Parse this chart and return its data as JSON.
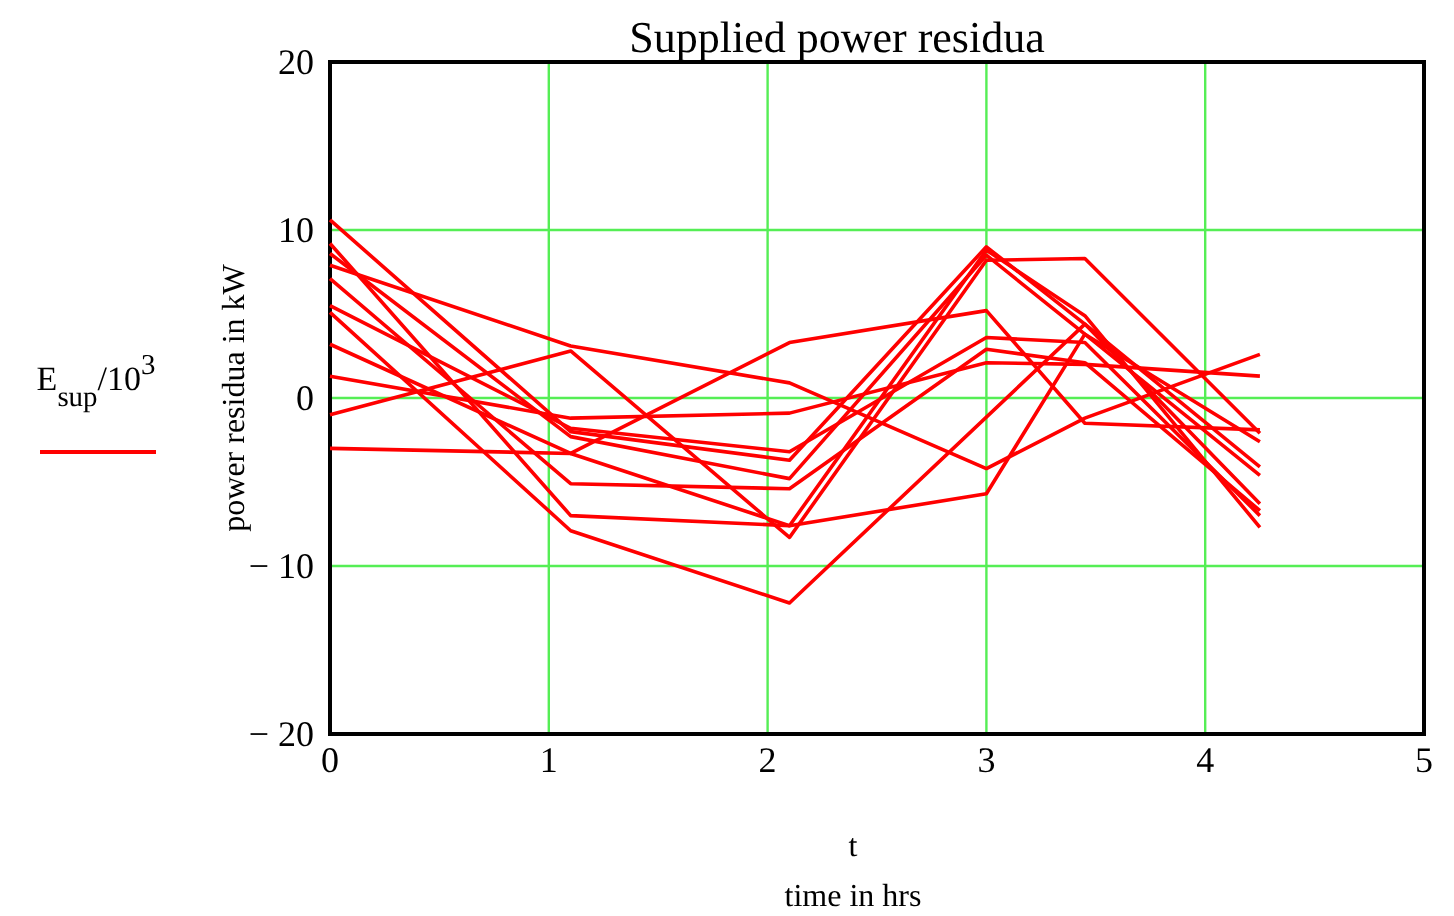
{
  "chart_data": {
    "type": "line",
    "title": "Supplied power residua",
    "xlabel": "time in hrs",
    "ylabel": "power residua in kW",
    "annotations": [
      "t"
    ],
    "x": [
      0,
      1.1,
      2.1,
      3,
      3.45,
      4.25
    ],
    "series": [
      {
        "name": "E$_{sup}$/10$^{3}$",
        "color": "#ff0000",
        "values": [
          10.6,
          -2.0,
          -3.7,
          9.0,
          4.4,
          -6.3
        ]
      },
      {
        "color": "#ff0000",
        "values": [
          9.2,
          -7.0,
          -7.6,
          8.8,
          4.9,
          -7.7
        ]
      },
      {
        "color": "#ff0000",
        "values": [
          8.6,
          -2.3,
          -4.8,
          8.5,
          3.8,
          -4.6
        ]
      },
      {
        "color": "#ff0000",
        "values": [
          7.9,
          3.1,
          0.9,
          -4.2,
          -1.2,
          2.6
        ]
      },
      {
        "color": "#ff0000",
        "values": [
          -1.0,
          2.8,
          -8.3,
          8.2,
          8.3,
          -2.1
        ]
      },
      {
        "color": "#ff0000",
        "values": [
          7.1,
          -5.1,
          -5.4,
          2.9,
          2.1,
          -6.7
        ]
      },
      {
        "color": "#ff0000",
        "values": [
          5.5,
          -1.8,
          -3.2,
          3.6,
          3.3,
          -7.0
        ]
      },
      {
        "color": "#ff0000",
        "x": [
          0,
          1.1,
          2.1,
          3.45,
          4.25
        ],
        "values": [
          5.1,
          -7.9,
          -12.2,
          4.4,
          -4.1
        ]
      },
      {
        "color": "#ff0000",
        "values": [
          3.2,
          -3.3,
          -7.6,
          -5.7,
          3.8,
          -2.6
        ]
      },
      {
        "color": "#ff0000",
        "values": [
          1.3,
          -1.2,
          -0.9,
          2.1,
          2.0,
          1.3
        ]
      },
      {
        "color": "#ff0000",
        "values": [
          -3.0,
          -3.3,
          3.3,
          5.2,
          -1.5,
          -1.9
        ]
      }
    ],
    "xlim": [
      0,
      5
    ],
    "ylim": [
      -20,
      20
    ],
    "xticks": [
      0,
      1,
      2,
      3,
      4,
      5
    ],
    "yticks": [
      -20,
      -10,
      0,
      10,
      20
    ],
    "grid": true,
    "legend": "left",
    "line_style": "solid",
    "marker": "none"
  }
}
